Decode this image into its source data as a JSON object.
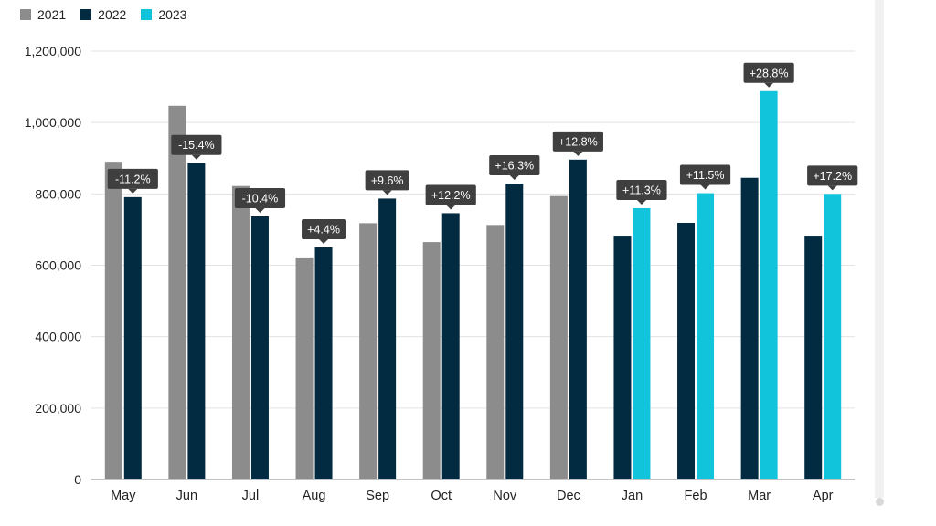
{
  "colors": {
    "s2021": "#8c8c8c",
    "s2022": "#022b41",
    "s2023": "#12c3dc",
    "label_bg": "#3f3f3f",
    "label_text": "#ffffff",
    "grid": "#e3e3e3",
    "axis_text": "#222222"
  },
  "legend": [
    {
      "name": "2021",
      "color_key": "s2021"
    },
    {
      "name": "2022",
      "color_key": "s2022"
    },
    {
      "name": "2023",
      "color_key": "s2023"
    }
  ],
  "chart_data": {
    "type": "bar",
    "categories": [
      "May",
      "Jun",
      "Jul",
      "Aug",
      "Sep",
      "Oct",
      "Nov",
      "Dec",
      "Jan",
      "Feb",
      "Mar",
      "Apr"
    ],
    "series": [
      {
        "name": "2021",
        "values": [
          890000,
          1047000,
          822000,
          622000,
          718000,
          665000,
          713000,
          794000,
          null,
          null,
          null,
          null
        ]
      },
      {
        "name": "2022",
        "values": [
          791000,
          886000,
          737000,
          650000,
          787000,
          746000,
          829000,
          896000,
          683000,
          719000,
          845000,
          683000
        ]
      },
      {
        "name": "2023",
        "values": [
          null,
          null,
          null,
          null,
          null,
          null,
          null,
          null,
          760000,
          802000,
          1088000,
          800000
        ]
      }
    ],
    "data_labels": [
      "-11.2%",
      "-15.4%",
      "-10.4%",
      "+4.4%",
      "+9.6%",
      "+12.2%",
      "+16.3%",
      "+12.8%",
      "+11.3%",
      "+11.5%",
      "+28.8%",
      "+17.2%"
    ],
    "y_ticks": [
      "0",
      "200,000",
      "400,000",
      "600,000",
      "800,000",
      "1,000,000",
      "1,200,000"
    ],
    "ylim": [
      0,
      1200000
    ],
    "grid": true,
    "legend_position": "top-left",
    "title": "",
    "xlabel": "",
    "ylabel": ""
  }
}
